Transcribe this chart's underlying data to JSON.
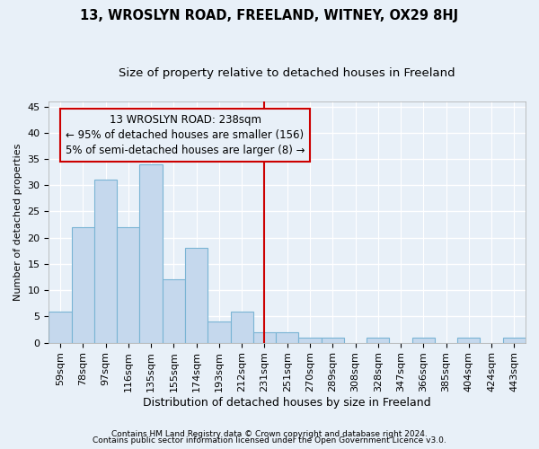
{
  "title1": "13, WROSLYN ROAD, FREELAND, WITNEY, OX29 8HJ",
  "title2": "Size of property relative to detached houses in Freeland",
  "xlabel": "Distribution of detached houses by size in Freeland",
  "ylabel": "Number of detached properties",
  "categories": [
    "59sqm",
    "78sqm",
    "97sqm",
    "116sqm",
    "135sqm",
    "155sqm",
    "174sqm",
    "193sqm",
    "212sqm",
    "231sqm",
    "251sqm",
    "270sqm",
    "289sqm",
    "308sqm",
    "328sqm",
    "347sqm",
    "366sqm",
    "385sqm",
    "404sqm",
    "424sqm",
    "443sqm"
  ],
  "bar_heights": [
    6,
    22,
    31,
    22,
    34,
    12,
    18,
    4,
    6,
    2,
    2,
    1,
    1,
    0,
    1,
    0,
    1,
    0,
    1,
    0,
    1
  ],
  "bar_color": "#c5d8ed",
  "bar_edgecolor": "#7ab4d4",
  "bg_color": "#e8f0f8",
  "grid_color": "#ffffff",
  "vline_index": 9,
  "vline_color": "#cc0000",
  "annotation_text": "13 WROSLYN ROAD: 238sqm\n← 95% of detached houses are smaller (156)\n5% of semi-detached houses are larger (8) →",
  "annotation_box_color": "#cc0000",
  "ylim": [
    0,
    46
  ],
  "yticks": [
    0,
    5,
    10,
    15,
    20,
    25,
    30,
    35,
    40,
    45
  ],
  "footer1": "Contains HM Land Registry data © Crown copyright and database right 2024.",
  "footer2": "Contains public sector information licensed under the Open Government Licence v3.0.",
  "title1_fontsize": 10.5,
  "title2_fontsize": 9.5,
  "xlabel_fontsize": 9,
  "ylabel_fontsize": 8,
  "tick_fontsize": 8,
  "annot_fontsize": 8.5,
  "footer_fontsize": 6.5
}
